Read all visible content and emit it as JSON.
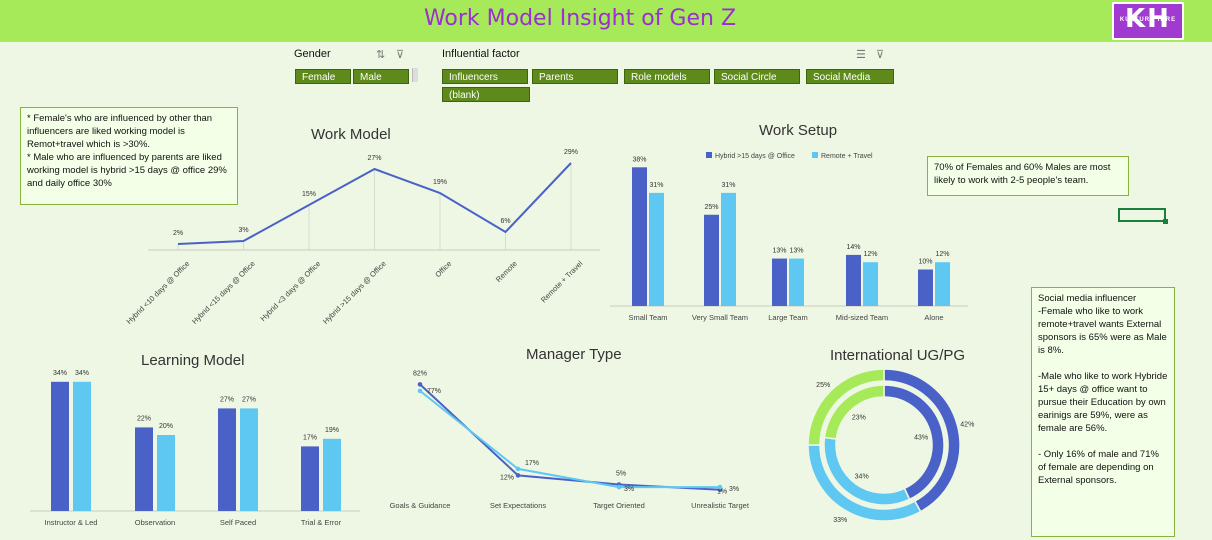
{
  "header": {
    "title": "Work Model Insight of Gen Z",
    "logo_big": "KH",
    "logo_small": "KULTURE HIRE"
  },
  "colors": {
    "dark_blue": "#4a62c8",
    "light_blue": "#5ec8f2",
    "green": "#a6ea5a",
    "chip": "#5e8a1b",
    "accent": "#9b2fd0"
  },
  "slicers": {
    "gender": {
      "label": "Gender",
      "items": [
        "Female",
        "Male"
      ]
    },
    "factor": {
      "label": "Influential factor",
      "items": [
        "Influencers",
        "Parents",
        "Role models",
        "Social Circle",
        "Social Media",
        "(blank)"
      ]
    }
  },
  "notes": {
    "left": "* Female's who are influenced by other than influencers are liked working model is Remot+travel which is >30%.\n* Male who are influenced by parents are liked working model is hybrid >15 days @ office 29% and daily office 30%",
    "team": "70% of Females and 60% Males are most likely to work with 2-5 people's team.",
    "right": "Social media influencer\n-Female who like to work remote+travel wants External sponsors is 65% were as Male is 8%.\n\n-Male who like to work Hybride 15+ days @ office want to pursue their Education by own earinigs are 59%, were as female are 56%.\n\n- Only 16% of male and 71% of female are depending on External sponsors."
  },
  "chart_data": [
    {
      "type": "line",
      "title": "Work Model",
      "categories": [
        "Hybrid <10 days @ Office",
        "Hybrid <15 days @ Office",
        "Hybrid <3 days @ Office",
        "Hybrid >15 days @ Office",
        "Office",
        "Remote",
        "Remote + Travel"
      ],
      "values": [
        2,
        3,
        15,
        27,
        19,
        6,
        29
      ],
      "labels": [
        "2%",
        "3%",
        "15%",
        "27%",
        "19%",
        "6%",
        "29%"
      ]
    },
    {
      "type": "bar",
      "title": "Work Setup",
      "categories": [
        "Small Team",
        "Very Small Team",
        "Large Team",
        "Mid-sized Team",
        "Alone"
      ],
      "series": [
        {
          "name": "Hybrid >15 days @ Office",
          "values": [
            38,
            25,
            13,
            14,
            10
          ],
          "labels": [
            "38%",
            "25%",
            "13%",
            "14%",
            "10%"
          ]
        },
        {
          "name": "Remote + Travel",
          "values": [
            31,
            31,
            13,
            12,
            12
          ],
          "labels": [
            "31%",
            "31%",
            "13%",
            "12%",
            "12%"
          ]
        }
      ],
      "legend": "top"
    },
    {
      "type": "bar",
      "title": "Learning Model",
      "categories": [
        "Instructor & Led",
        "Observation",
        "Self Paced",
        "Trial & Error"
      ],
      "series": [
        {
          "values": [
            34,
            22,
            27,
            17
          ],
          "labels": [
            "34%",
            "22%",
            "27%",
            "17%"
          ]
        },
        {
          "values": [
            34,
            20,
            27,
            19
          ],
          "labels": [
            "34%",
            "20%",
            "27%",
            "19%"
          ]
        }
      ]
    },
    {
      "type": "line",
      "title": "Manager Type",
      "categories": [
        "Goals & Guidance",
        "Set Expectations",
        "Target Oriented",
        "Unrealistic Target"
      ],
      "series": [
        {
          "values": [
            82,
            12,
            5,
            1
          ],
          "labels": [
            "82%",
            "12%",
            "5%",
            "1%"
          ]
        },
        {
          "values": [
            77,
            17,
            3,
            3
          ],
          "labels": [
            "77%",
            "17%",
            "3%",
            "3%"
          ]
        }
      ]
    },
    {
      "type": "pie",
      "title": "International UG/PG",
      "rings": [
        {
          "values": [
            42,
            33,
            25
          ],
          "labels": [
            "42%",
            "33%",
            "25%"
          ]
        },
        {
          "values": [
            43,
            34,
            23
          ],
          "labels": [
            "43%",
            "34%",
            "23%"
          ]
        }
      ]
    }
  ]
}
